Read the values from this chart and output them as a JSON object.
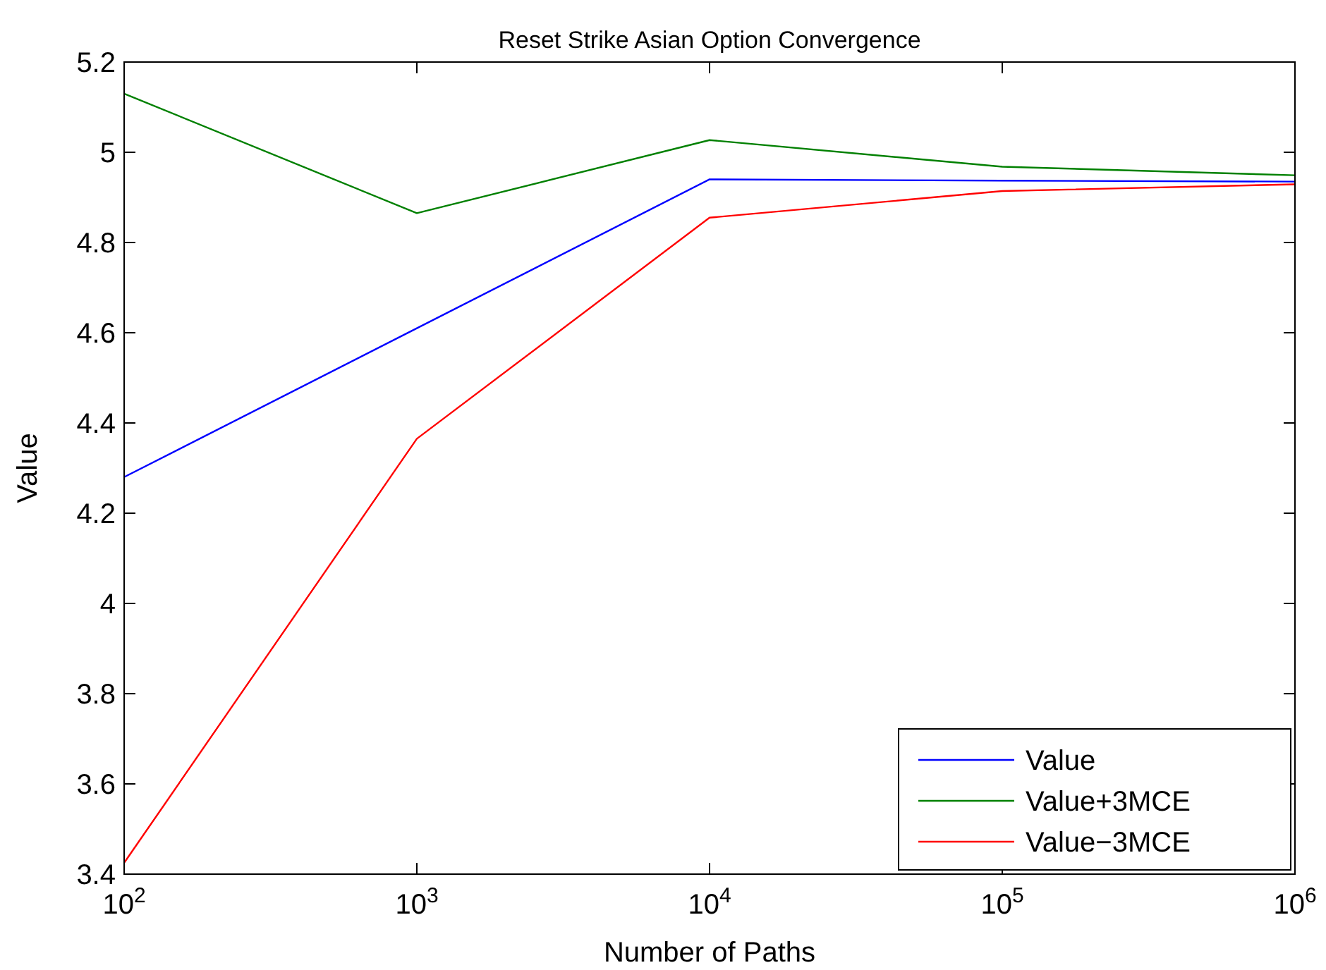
{
  "chart_data": {
    "type": "line",
    "title": "Reset Strike Asian Option Convergence",
    "xlabel": "Number of Paths",
    "ylabel": "Value",
    "x": [
      100,
      1000,
      10000,
      100000,
      1000000
    ],
    "series": [
      {
        "name": "Value",
        "color": "#0000ff",
        "values": [
          4.28,
          4.61,
          4.94,
          4.937,
          4.935
        ]
      },
      {
        "name": "Value+3MCE",
        "color": "#008000",
        "values": [
          5.13,
          4.865,
          5.027,
          4.968,
          4.949
        ]
      },
      {
        "name": "Value−3MCE",
        "color": "#ff0000",
        "values": [
          3.425,
          4.365,
          4.855,
          4.914,
          4.929
        ]
      }
    ],
    "log": "x",
    "xlim": [
      100,
      1000000
    ],
    "xticks": [
      {
        "value": 100,
        "label": "10$^{2}$"
      },
      {
        "value": 1000,
        "label": "10$^{3}$"
      },
      {
        "value": 10000,
        "label": "10$^{4}$"
      },
      {
        "value": 100000,
        "label": "10$^{5}$"
      },
      {
        "value": 1000000,
        "label": "10$^{6}$"
      }
    ],
    "ylim": [
      3.4,
      5.2
    ],
    "yticks": [
      3.4,
      3.6,
      3.8,
      4,
      4.2,
      4.4,
      4.6,
      4.8,
      5,
      5.2
    ],
    "grid": false,
    "legend": "bottom right",
    "line_style": "solid",
    "marker": "none"
  }
}
